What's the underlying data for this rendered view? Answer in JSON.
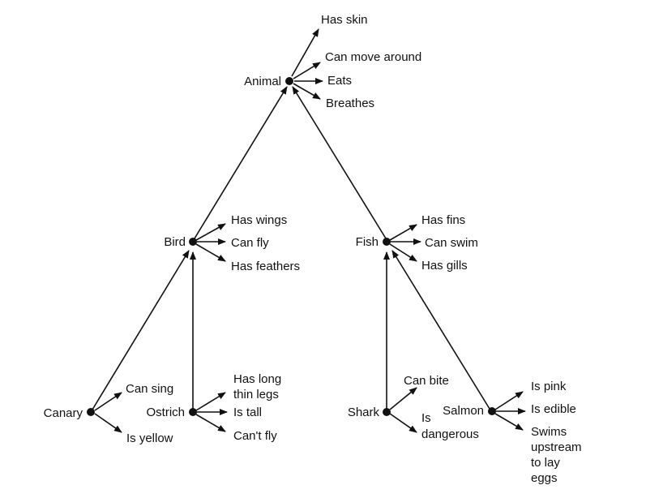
{
  "nodes": {
    "animal": {
      "label": "Animal",
      "properties": [
        "Has skin",
        "Can move around",
        "Eats",
        "Breathes"
      ]
    },
    "bird": {
      "label": "Bird",
      "properties": [
        "Has wings",
        "Can fly",
        "Has feathers"
      ]
    },
    "fish": {
      "label": "Fish",
      "properties": [
        "Has fins",
        "Can swim",
        "Has gills"
      ]
    },
    "canary": {
      "label": "Canary",
      "properties": [
        "Can sing",
        "Is yellow"
      ]
    },
    "ostrich": {
      "label": "Ostrich",
      "properties": [
        [
          "Has long",
          "thin legs"
        ],
        "Is tall",
        "Can't fly"
      ]
    },
    "shark": {
      "label": "Shark",
      "properties": [
        "Can bite",
        [
          "Is",
          "dangerous"
        ]
      ]
    },
    "salmon": {
      "label": "Salmon",
      "properties": [
        "Is pink",
        "Is edible",
        [
          "Swims",
          "upstream",
          "to lay",
          "eggs"
        ]
      ]
    }
  }
}
